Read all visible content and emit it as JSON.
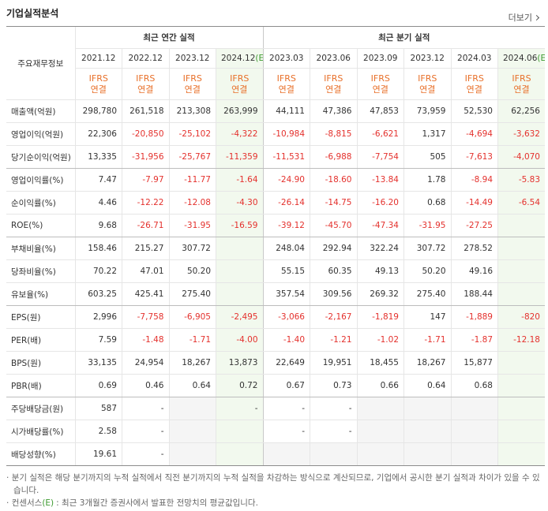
{
  "header": {
    "title": "기업실적분석",
    "more": "더보기"
  },
  "table": {
    "corner": "주요재무정보",
    "groups": [
      "최근 연간 실적",
      "최근 분기 실적"
    ],
    "periods": [
      {
        "label": "2021.12"
      },
      {
        "label": "2022.12"
      },
      {
        "label": "2023.12"
      },
      {
        "label": "2024.12",
        "mark": "(E)"
      },
      {
        "label": "2023.03"
      },
      {
        "label": "2023.06"
      },
      {
        "label": "2023.09"
      },
      {
        "label": "2023.12"
      },
      {
        "label": "2024.03"
      },
      {
        "label": "2024.06",
        "mark": "(E)"
      }
    ],
    "standard": {
      "top": "IFRS",
      "bottom": "연결"
    },
    "rows": [
      {
        "label": "매출액(억원)",
        "values": [
          "298,780",
          "261,518",
          "213,308",
          "263,999",
          "44,111",
          "47,386",
          "47,853",
          "73,959",
          "52,530",
          "62,256"
        ]
      },
      {
        "label": "영업이익(억원)",
        "values": [
          "22,306",
          "-20,850",
          "-25,102",
          "-4,322",
          "-10,984",
          "-8,815",
          "-6,621",
          "1,317",
          "-4,694",
          "-3,632"
        ]
      },
      {
        "label": "당기순이익(억원)",
        "values": [
          "13,335",
          "-31,956",
          "-25,767",
          "-11,359",
          "-11,531",
          "-6,988",
          "-7,754",
          "505",
          "-7,613",
          "-4,070"
        ]
      },
      {
        "label": "영업이익률(%)",
        "values": [
          "7.47",
          "-7.97",
          "-11.77",
          "-1.64",
          "-24.90",
          "-18.60",
          "-13.84",
          "1.78",
          "-8.94",
          "-5.83"
        ]
      },
      {
        "label": "순이익률(%)",
        "values": [
          "4.46",
          "-12.22",
          "-12.08",
          "-4.30",
          "-26.14",
          "-14.75",
          "-16.20",
          "0.68",
          "-14.49",
          "-6.54"
        ]
      },
      {
        "label": "ROE(%)",
        "values": [
          "9.68",
          "-26.71",
          "-31.95",
          "-16.59",
          "-39.12",
          "-45.70",
          "-47.34",
          "-31.95",
          "-27.25",
          null
        ]
      },
      {
        "label": "부채비율(%)",
        "values": [
          "158.46",
          "215.27",
          "307.72",
          null,
          "248.04",
          "292.94",
          "322.24",
          "307.72",
          "278.52",
          null
        ]
      },
      {
        "label": "당좌비율(%)",
        "values": [
          "70.22",
          "47.01",
          "50.20",
          null,
          "55.15",
          "60.35",
          "49.13",
          "50.20",
          "49.16",
          null
        ]
      },
      {
        "label": "유보율(%)",
        "values": [
          "603.25",
          "425.41",
          "275.40",
          null,
          "357.54",
          "309.56",
          "269.32",
          "275.40",
          "188.44",
          null
        ]
      },
      {
        "label": "EPS(원)",
        "values": [
          "2,996",
          "-7,758",
          "-6,905",
          "-2,495",
          "-3,066",
          "-2,167",
          "-1,819",
          "147",
          "-1,889",
          "-820"
        ]
      },
      {
        "label": "PER(배)",
        "values": [
          "7.59",
          "-1.48",
          "-1.71",
          "-4.00",
          "-1.40",
          "-1.21",
          "-1.02",
          "-1.71",
          "-1.87",
          "-12.18"
        ]
      },
      {
        "label": "BPS(원)",
        "values": [
          "33,135",
          "24,954",
          "18,267",
          "13,873",
          "22,649",
          "19,951",
          "18,455",
          "18,267",
          "15,877",
          null
        ]
      },
      {
        "label": "PBR(배)",
        "values": [
          "0.69",
          "0.46",
          "0.64",
          "0.72",
          "0.67",
          "0.73",
          "0.66",
          "0.64",
          "0.68",
          null
        ]
      },
      {
        "label": "주당배당금(원)",
        "values": [
          "587",
          "-",
          null,
          "-",
          "-",
          "-",
          null,
          null,
          null,
          null
        ]
      },
      {
        "label": "시가배당률(%)",
        "values": [
          "2.58",
          "-",
          null,
          null,
          "-",
          "-",
          null,
          null,
          null,
          null
        ]
      },
      {
        "label": "배당성향(%)",
        "values": [
          "19.61",
          "-",
          null,
          null,
          null,
          null,
          null,
          null,
          null,
          null
        ]
      }
    ]
  },
  "notes": [
    {
      "text": "분기 실적은 해당 분기까지의 누적 실적에서 직전 분기까지의 누적 실적을 차감하는 방식으로 계산되므로, 기업에서 공시한 분기 실적과 차이가 있을 수 있습니다."
    },
    {
      "label": "컨센서스",
      "mark": "(E)",
      "text": ": 최근 3개월간 증권사에서 발표한 전망치의 평균값입니다."
    }
  ]
}
